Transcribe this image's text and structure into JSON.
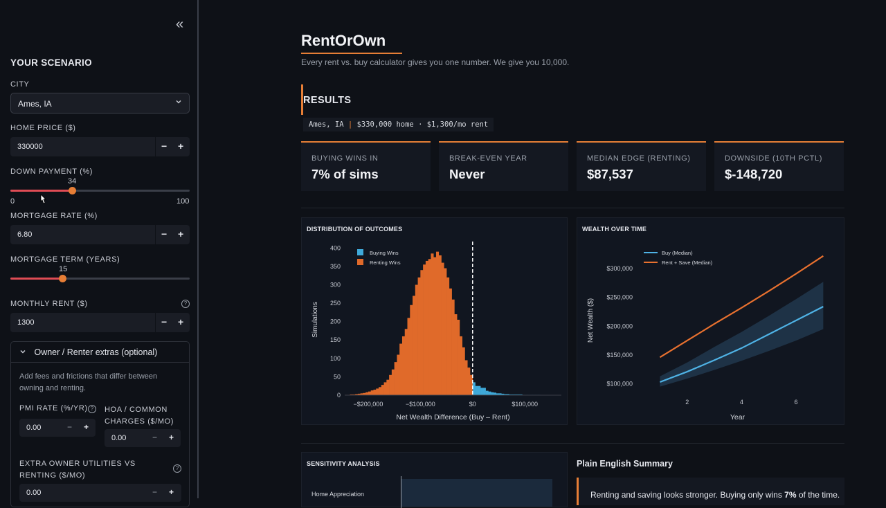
{
  "sidebar": {
    "collapse_glyph": "«",
    "title": "YOUR SCENARIO",
    "city_label": "CITY",
    "city_value": "Ames, IA",
    "home_price_label": "HOME PRICE ($)",
    "home_price_value": "330000",
    "down_payment_label": "DOWN PAYMENT (%)",
    "down_payment_value": "34",
    "down_payment_min": "0",
    "down_payment_max": "100",
    "mortgage_rate_label": "MORTGAGE RATE (%)",
    "mortgage_rate_value": "6.80",
    "mortgage_term_label": "MORTGAGE TERM (YEARS)",
    "mortgage_term_value": "15",
    "monthly_rent_label": "MONTHLY RENT ($)",
    "monthly_rent_value": "1300",
    "minus": "−",
    "plus": "+",
    "help": "?",
    "extras": {
      "header": "Owner / Renter extras (optional)",
      "note": "Add fees and frictions that differ between owning and renting.",
      "pmi_label": "PMI RATE (%/YR)",
      "pmi_value": "0.00",
      "hoa_label": "HOA / COMMON CHARGES ($/MO)",
      "hoa_value": "0.00",
      "utilities_label": "EXTRA OWNER UTILITIES VS RENTING ($/MO)",
      "utilities_value": "0.00"
    }
  },
  "header": {
    "title": "RentOrOwn",
    "tagline": "Every rent vs. buy calculator gives you one number. We give you 10,000."
  },
  "results": {
    "title": "RESULTS",
    "scenario_city": "Ames, IA",
    "scenario_pipe": "|",
    "scenario_rest": "$330,000 home · $1,300/mo rent",
    "cards": [
      {
        "label": "BUYING WINS IN",
        "value": "7% of sims"
      },
      {
        "label": "BREAK-EVEN YEAR",
        "value": "Never"
      },
      {
        "label": "MEDIAN EDGE (RENTING)",
        "value": "$87,537"
      },
      {
        "label": "DOWNSIDE (10TH PCTL)",
        "value": "$-148,720"
      }
    ]
  },
  "colors": {
    "accent": "#e67e36",
    "buy": "#3fa9d9",
    "rent": "#e06a2a"
  },
  "chart_data": [
    {
      "type": "bar",
      "title": "DISTRIBUTION OF OUTCOMES",
      "xlabel": "Net Wealth Difference (Buy – Rent)",
      "ylabel": "Simulations",
      "xlim": [
        -245000,
        170000
      ],
      "ylim": [
        0,
        410
      ],
      "xticks": [
        {
          "v": -200000,
          "label": "−$200,000"
        },
        {
          "v": -100000,
          "label": "−$100,000"
        },
        {
          "v": 0,
          "label": "$0"
        },
        {
          "v": 100000,
          "label": "$100,000"
        }
      ],
      "yticks": [
        0,
        50,
        100,
        150,
        200,
        250,
        300,
        350,
        400
      ],
      "bin_width": 5000,
      "bin_start": -245000,
      "rent_counts": [
        1,
        1,
        2,
        2,
        3,
        4,
        5,
        6,
        8,
        10,
        13,
        15,
        18,
        22,
        28,
        35,
        42,
        55,
        70,
        90,
        110,
        140,
        160,
        180,
        210,
        245,
        270,
        300,
        320,
        340,
        355,
        365,
        370,
        385,
        375,
        390,
        380,
        360,
        345,
        320,
        290,
        260,
        220,
        205,
        160,
        130,
        95,
        75,
        55
      ],
      "buy_counts": [
        35,
        25,
        25,
        20,
        20,
        12,
        10,
        8,
        7,
        5,
        5,
        4,
        3,
        3,
        2,
        2,
        2,
        2,
        2,
        1,
        1,
        1,
        1,
        1,
        1,
        1
      ],
      "legend": [
        {
          "name": "Buying Wins",
          "color": "#3fa9d9"
        },
        {
          "name": "Renting Wins",
          "color": "#e06a2a"
        }
      ],
      "vline": 0
    },
    {
      "type": "line",
      "title": "WEALTH OVER TIME",
      "xlabel": "Year",
      "ylabel": "Net Wealth ($)",
      "xlim": [
        0.2,
        7.5
      ],
      "ylim": [
        85000,
        335000
      ],
      "xticks": [
        2,
        4,
        6
      ],
      "yticks": [
        {
          "v": 100000,
          "label": "$100,000"
        },
        {
          "v": 150000,
          "label": "$150,000"
        },
        {
          "v": 200000,
          "label": "$200,000"
        },
        {
          "v": 250000,
          "label": "$250,000"
        },
        {
          "v": 300000,
          "label": "$300,000"
        }
      ],
      "x": [
        1,
        2,
        3,
        4,
        5,
        6,
        7
      ],
      "series": [
        {
          "name": "Buy (Median)",
          "color": "#4fb3e6",
          "values": [
            103000,
            121000,
            141000,
            162000,
            186000,
            210000,
            234000
          ],
          "band_low": [
            95000,
            109000,
            124000,
            140000,
            157000,
            175000,
            195000
          ],
          "band_high": [
            113000,
            137000,
            164000,
            190000,
            218000,
            247000,
            277000
          ]
        },
        {
          "name": "Rent + Save (Median)",
          "color": "#e9712f",
          "values": [
            146000,
            175000,
            204000,
            232000,
            261000,
            291000,
            322000
          ]
        }
      ]
    }
  ],
  "sensitivity": {
    "title": "SENSITIVITY ANALYSIS",
    "first_row_label": "Home Appreciation"
  },
  "summary": {
    "title": "Plain English Summary",
    "text_before": "Renting and saving looks stronger. Buying only wins ",
    "text_bold": "7%",
    "text_after": " of the time."
  }
}
